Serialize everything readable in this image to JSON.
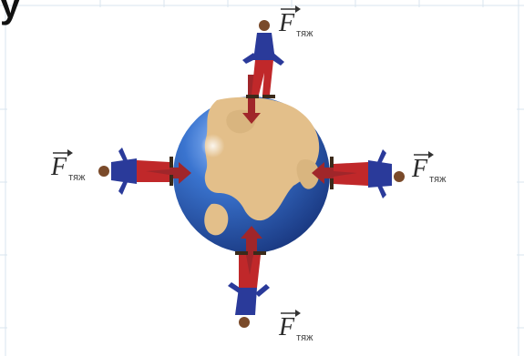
{
  "title_fragment": "y",
  "force_labels": {
    "top": {
      "letter": "F",
      "subscript": "тяж"
    },
    "left": {
      "letter": "F",
      "subscript": "тяж"
    },
    "right": {
      "letter": "F",
      "subscript": "тяж"
    },
    "bottom": {
      "letter": "F",
      "subscript": "тяж"
    }
  },
  "colors": {
    "ocean": "#2f5fb3",
    "land": "#e3bf8a",
    "shirt": "#2a3a9a",
    "pants": "#c0282a",
    "arrow": "#a0262a",
    "grid": "#d9e4ef"
  }
}
